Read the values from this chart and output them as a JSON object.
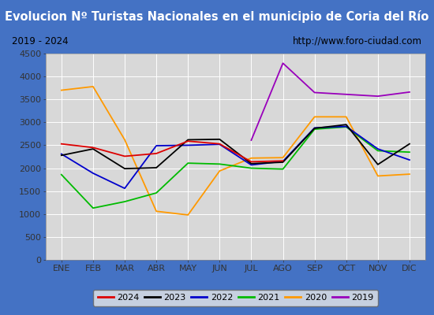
{
  "title": "Evolucion Nº Turistas Nacionales en el municipio de Coria del Río",
  "subtitle_left": "2019 - 2024",
  "subtitle_right": "http://www.foro-ciudad.com",
  "months": [
    "ENE",
    "FEB",
    "MAR",
    "ABR",
    "MAY",
    "JUN",
    "JUL",
    "AGO",
    "SEP",
    "OCT",
    "NOV",
    "DIC"
  ],
  "ylim": [
    0,
    4500
  ],
  "yticks": [
    0,
    500,
    1000,
    1500,
    2000,
    2500,
    3000,
    3500,
    4000,
    4500
  ],
  "series": {
    "2024": {
      "color": "#dd0000",
      "data": [
        2530,
        2450,
        2260,
        2320,
        2590,
        2530,
        2140,
        2160,
        null,
        null,
        null,
        null
      ]
    },
    "2023": {
      "color": "#000000",
      "data": [
        2280,
        2420,
        1990,
        2010,
        2620,
        2630,
        2100,
        2130,
        2870,
        2950,
        2080,
        2530
      ]
    },
    "2022": {
      "color": "#0000cc",
      "data": [
        2310,
        1890,
        1560,
        2490,
        2500,
        2520,
        2070,
        2150,
        2880,
        2910,
        2420,
        2180
      ]
    },
    "2021": {
      "color": "#00bb00",
      "data": [
        1860,
        1130,
        1270,
        1460,
        2110,
        2090,
        2000,
        1980,
        2850,
        2900,
        2380,
        2350
      ]
    },
    "2020": {
      "color": "#ff9900",
      "data": [
        3700,
        3780,
        2620,
        1060,
        980,
        1940,
        2220,
        2230,
        3120,
        3120,
        1830,
        1870
      ]
    },
    "2019": {
      "color": "#9900bb",
      "data": [
        null,
        null,
        null,
        null,
        null,
        null,
        2610,
        4290,
        3650,
        3610,
        3570,
        3660
      ]
    }
  },
  "title_bg": "#4472c4",
  "title_color": "#ffffff",
  "title_fontsize": 10.5,
  "subtitle_fontsize": 8.5,
  "axis_fontsize": 8,
  "legend_fontsize": 8,
  "plot_bg": "#d8d8d8",
  "grid_color": "#ffffff",
  "outer_bg": "#4472c4",
  "inner_bg": "#c8c8c8"
}
